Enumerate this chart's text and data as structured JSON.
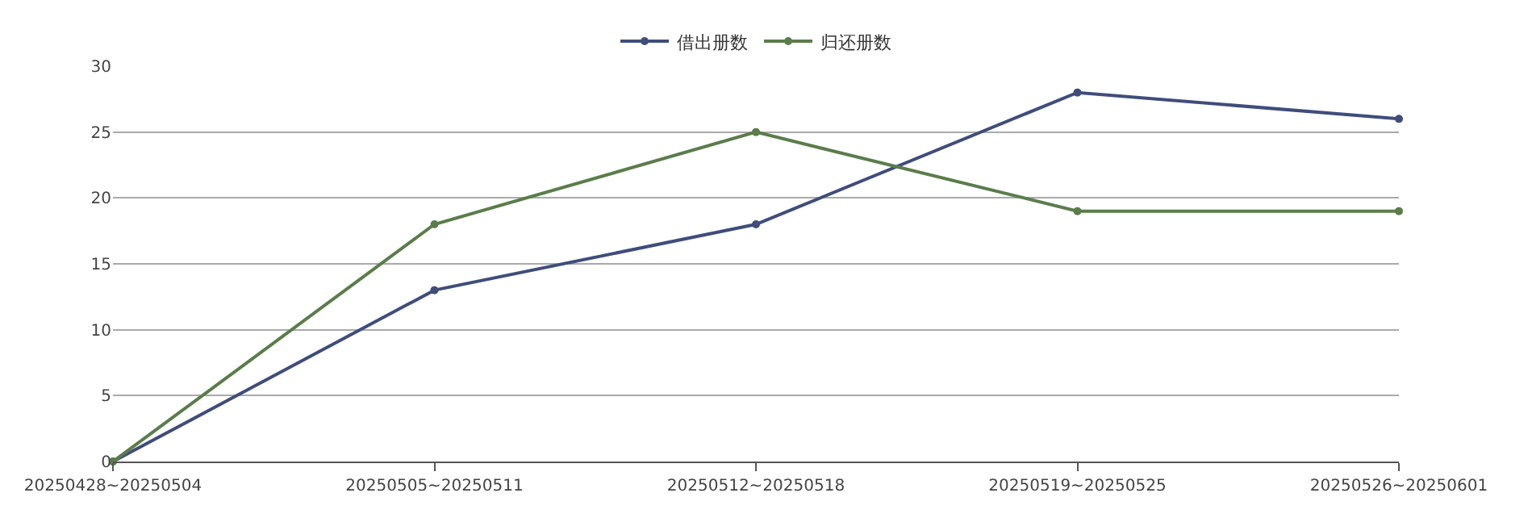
{
  "chart_data": {
    "type": "line",
    "categories": [
      "20250428~20250504",
      "20250505~20250511",
      "20250512~20250518",
      "20250519~20250525",
      "20250526~20250601"
    ],
    "series": [
      {
        "name": "借出册数",
        "color": "#3f4d7c",
        "values": [
          0,
          13,
          18,
          28,
          26
        ]
      },
      {
        "name": "归还册数",
        "color": "#5a7d4a",
        "values": [
          0,
          18,
          25,
          19,
          19
        ]
      }
    ],
    "ylim": [
      0,
      30
    ],
    "yticks": [
      0,
      5,
      10,
      15,
      20,
      25,
      30
    ],
    "grid": "y",
    "legend": "top",
    "marker": "circle",
    "line_style": "solid"
  }
}
